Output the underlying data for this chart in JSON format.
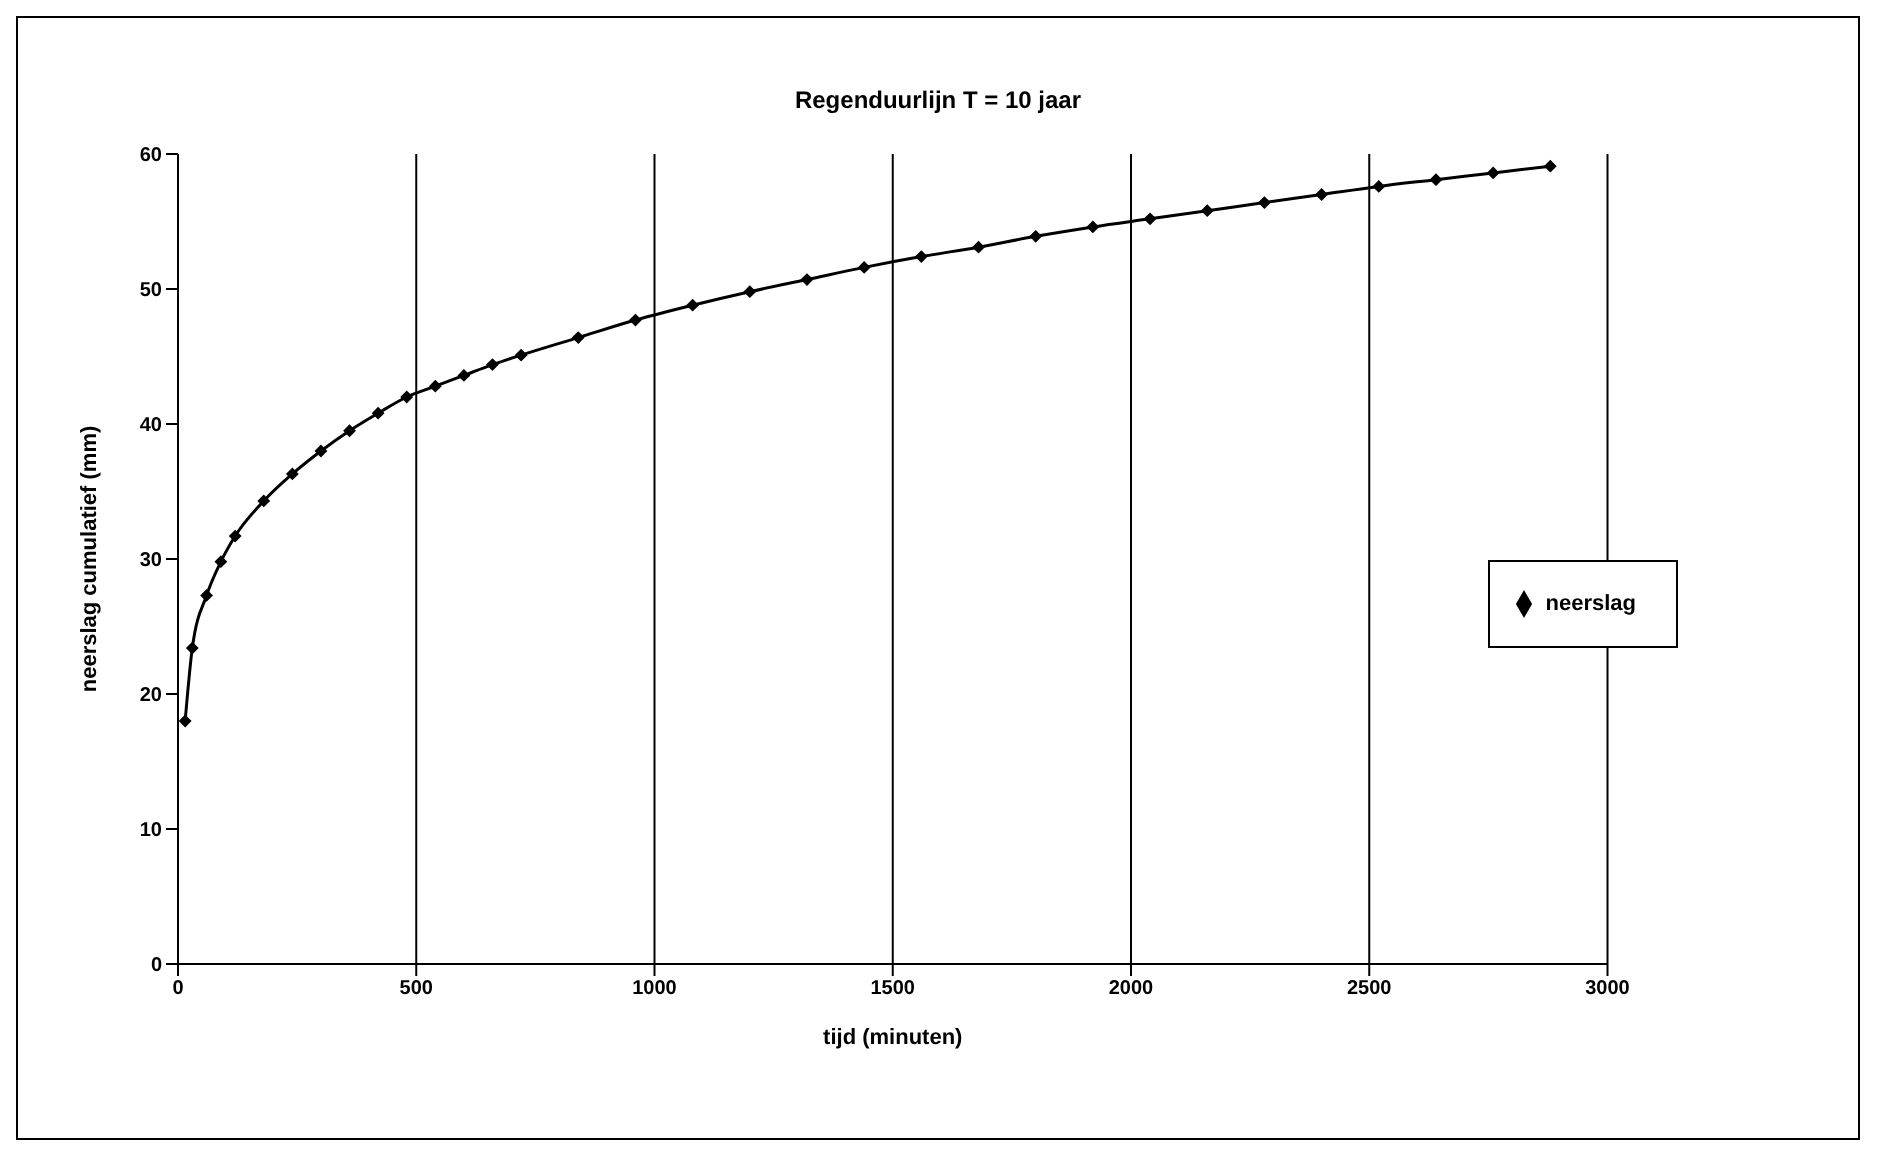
{
  "chart_data": {
    "type": "line",
    "title": "Regenduurlijn T = 10 jaar",
    "xlabel": "tijd (minuten)",
    "ylabel": "neerslag cumulatief (mm)",
    "x": [
      15,
      30,
      60,
      90,
      120,
      180,
      240,
      300,
      360,
      420,
      480,
      540,
      600,
      660,
      720,
      840,
      960,
      1080,
      1200,
      1320,
      1440,
      1560,
      1680,
      1800,
      1920,
      2040,
      2160,
      2280,
      2400,
      2520,
      2640,
      2760,
      2880
    ],
    "series": [
      {
        "name": "neerslag",
        "color": "#000000",
        "values": [
          18.0,
          23.4,
          27.3,
          29.8,
          31.7,
          34.3,
          36.3,
          38,
          39.5,
          40.8,
          42,
          42.8,
          43.6,
          44.4,
          45.1,
          46.4,
          47.7,
          48.8,
          49.8,
          50.7,
          51.6,
          52.4,
          53.1,
          53.9,
          54.6,
          55.2,
          55.8,
          56.4,
          57,
          57.6,
          58.1,
          58.6,
          59.1
        ]
      }
    ],
    "xlim": [
      0,
      3000
    ],
    "xticks": [
      0,
      500,
      1000,
      1500,
      2000,
      2500,
      3000
    ],
    "ylim": [
      0,
      60
    ],
    "yticks": [
      0,
      10,
      20,
      30,
      40,
      50,
      60
    ],
    "grid": "x",
    "legend": "right",
    "marker": "diamond",
    "line_style": "solid"
  }
}
